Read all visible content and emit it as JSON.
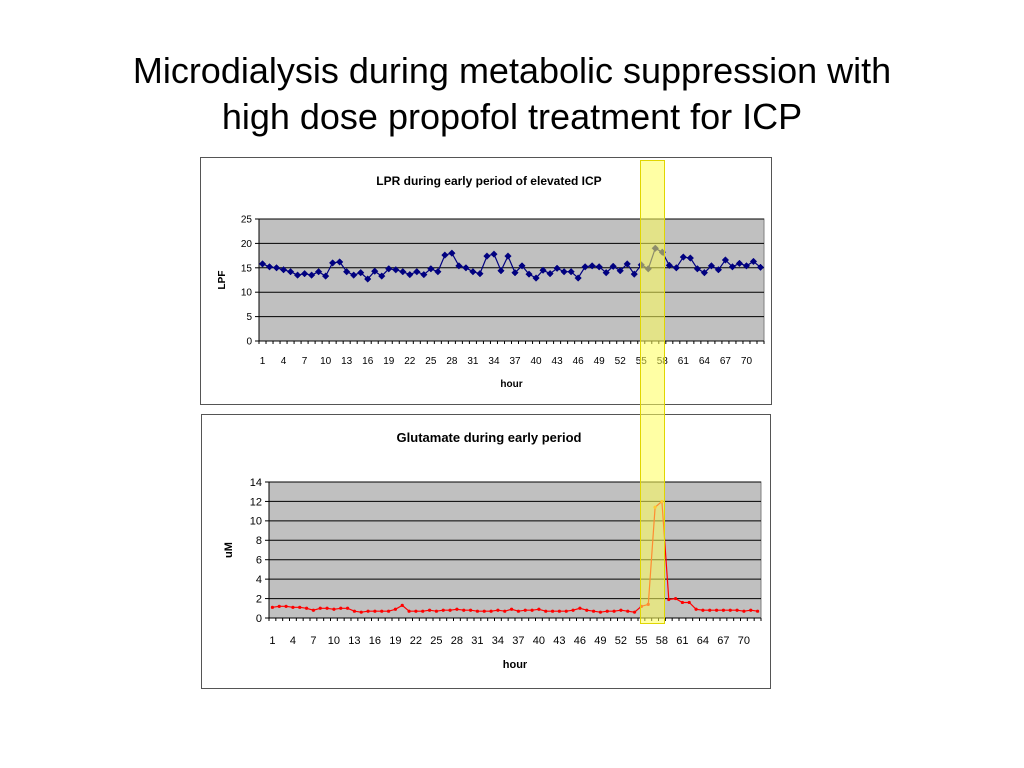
{
  "slide": {
    "title_line1": "Microdialysis during metabolic suppression with",
    "title_line2": "high dose propofol treatment for ICP"
  },
  "colors": {
    "plot_bg": "#c0c0c0",
    "lpr_series": "#000080",
    "glu_series": "#ff0000",
    "glu_marker": "#ff8c00",
    "highlight": "#ffff66"
  },
  "chart_data": [
    {
      "type": "line",
      "title": "LPR during early period of elevated ICP",
      "xlabel": "hour",
      "ylabel": "LPF",
      "ylim": [
        0,
        25
      ],
      "yticks": [
        0,
        5,
        10,
        15,
        20,
        25
      ],
      "grid": true,
      "legend": "none",
      "x_tick_labels": [
        "1",
        "4",
        "7",
        "10",
        "13",
        "16",
        "19",
        "22",
        "25",
        "28",
        "31",
        "34",
        "37",
        "40",
        "43",
        "46",
        "49",
        "52",
        "55",
        "58",
        "61",
        "64",
        "67",
        "70"
      ],
      "x": [
        1,
        2,
        3,
        4,
        5,
        6,
        7,
        8,
        9,
        10,
        11,
        12,
        13,
        14,
        15,
        16,
        17,
        18,
        19,
        20,
        21,
        22,
        23,
        24,
        25,
        26,
        27,
        28,
        29,
        30,
        31,
        32,
        33,
        34,
        35,
        36,
        37,
        38,
        39,
        40,
        41,
        42,
        43,
        44,
        45,
        46,
        47,
        48,
        49,
        50,
        51,
        52,
        53,
        54,
        55,
        56,
        57,
        58,
        59,
        60,
        61,
        62,
        63,
        64,
        65,
        66,
        67,
        68,
        69,
        70,
        71,
        72
      ],
      "series": [
        {
          "values": [
            15.8,
            15.2,
            15.0,
            14.6,
            14.2,
            13.5,
            13.8,
            13.5,
            14.2,
            13.3,
            16.0,
            16.2,
            14.2,
            13.5,
            14.0,
            12.7,
            14.3,
            13.3,
            14.8,
            14.6,
            14.2,
            13.6,
            14.2,
            13.6,
            14.8,
            14.2,
            17.6,
            18.0,
            15.4,
            15.0,
            14.2,
            13.8,
            17.4,
            17.8,
            14.4,
            17.4,
            14.0,
            15.4,
            13.7,
            12.9,
            14.5,
            13.8,
            14.9,
            14.2,
            14.2,
            12.9,
            15.2,
            15.4,
            15.2,
            14.0,
            15.3,
            14.4,
            15.8,
            13.7,
            15.6,
            14.8,
            19.0,
            18.2,
            15.5,
            15.0,
            17.2,
            17.0,
            14.8,
            14.0,
            15.4,
            14.6,
            16.6,
            15.2,
            15.9,
            15.4,
            16.3,
            15.1
          ]
        }
      ]
    },
    {
      "type": "line",
      "title": "Glutamate during early period",
      "xlabel": "hour",
      "ylabel": "uM",
      "ylim": [
        0,
        14
      ],
      "yticks": [
        0,
        2,
        4,
        6,
        8,
        10,
        12,
        14
      ],
      "grid": true,
      "legend": "none",
      "x_tick_labels": [
        "1",
        "4",
        "7",
        "10",
        "13",
        "16",
        "19",
        "22",
        "25",
        "28",
        "31",
        "34",
        "37",
        "40",
        "43",
        "46",
        "49",
        "52",
        "55",
        "58",
        "61",
        "64",
        "67",
        "70"
      ],
      "x": [
        1,
        2,
        3,
        4,
        5,
        6,
        7,
        8,
        9,
        10,
        11,
        12,
        13,
        14,
        15,
        16,
        17,
        18,
        19,
        20,
        21,
        22,
        23,
        24,
        25,
        26,
        27,
        28,
        29,
        30,
        31,
        32,
        33,
        34,
        35,
        36,
        37,
        38,
        39,
        40,
        41,
        42,
        43,
        44,
        45,
        46,
        47,
        48,
        49,
        50,
        51,
        52,
        53,
        54,
        55,
        56,
        57,
        58,
        59,
        60,
        61,
        62,
        63,
        64,
        65,
        66,
        67,
        68,
        69,
        70,
        71,
        72
      ],
      "series": [
        {
          "values": [
            1.1,
            1.2,
            1.2,
            1.1,
            1.1,
            1.0,
            0.8,
            1.0,
            1.0,
            0.9,
            1.0,
            1.0,
            0.7,
            0.6,
            0.7,
            0.7,
            0.7,
            0.7,
            0.9,
            1.3,
            0.7,
            0.7,
            0.7,
            0.8,
            0.7,
            0.8,
            0.8,
            0.9,
            0.8,
            0.8,
            0.7,
            0.7,
            0.7,
            0.8,
            0.7,
            0.9,
            0.7,
            0.8,
            0.8,
            0.9,
            0.7,
            0.7,
            0.7,
            0.7,
            0.8,
            1.0,
            0.8,
            0.7,
            0.6,
            0.7,
            0.7,
            0.8,
            0.7,
            0.6,
            1.2,
            1.4,
            11.4,
            12.0,
            1.9,
            2.0,
            1.6,
            1.6,
            0.9,
            0.8,
            0.8,
            0.8,
            0.8,
            0.8,
            0.8,
            0.7,
            0.8,
            0.7
          ]
        }
      ]
    }
  ]
}
